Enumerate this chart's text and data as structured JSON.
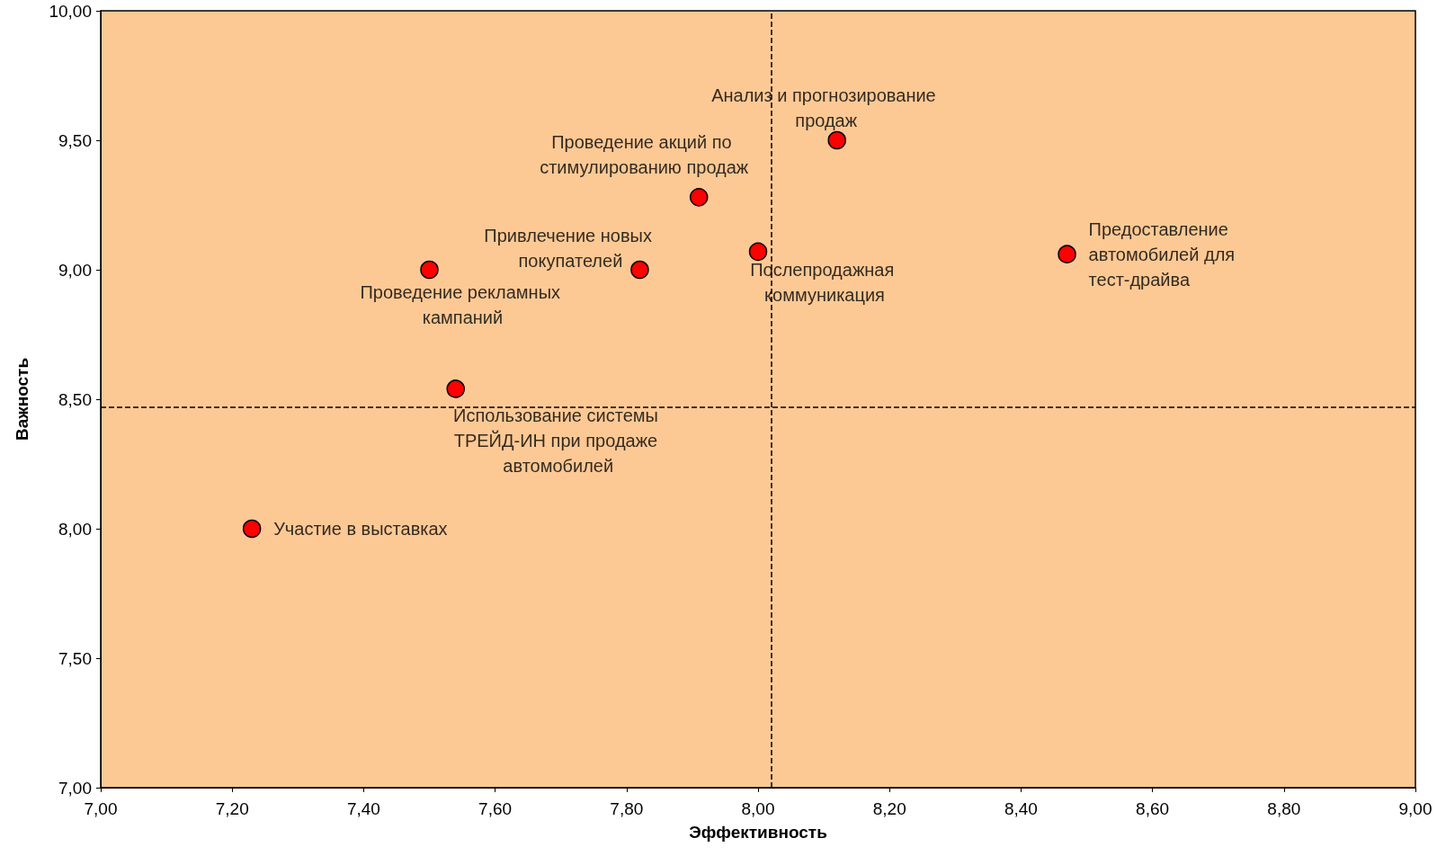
{
  "chart_data": {
    "type": "scatter",
    "xlabel": "Эффективность",
    "ylabel": "Важность",
    "x": [
      7.23,
      7.5,
      7.54,
      7.82,
      7.91,
      8.0,
      8.12,
      8.47
    ],
    "values": [
      8.0,
      9.0,
      8.54,
      9.0,
      9.28,
      9.07,
      9.5,
      9.06
    ],
    "color": "#ff0000",
    "marker": "circle",
    "grid": false,
    "xlim": [
      7.0,
      9.0
    ],
    "xticks": [
      {
        "value": 7.0,
        "label": "7,00"
      },
      {
        "value": 7.2,
        "label": "7,20"
      },
      {
        "value": 7.4,
        "label": "7,40"
      },
      {
        "value": 7.6,
        "label": "7,60"
      },
      {
        "value": 7.8,
        "label": "7,80"
      },
      {
        "value": 8.0,
        "label": "8,00"
      },
      {
        "value": 8.2,
        "label": "8,20"
      },
      {
        "value": 8.4,
        "label": "8,40"
      },
      {
        "value": 8.6,
        "label": "8,60"
      },
      {
        "value": 8.8,
        "label": "8,80"
      },
      {
        "value": 9.0,
        "label": "9,00"
      }
    ],
    "ylim": [
      7.0,
      10.0
    ],
    "yticks": [
      {
        "value": 7.0,
        "label": "7,00"
      },
      {
        "value": 7.5,
        "label": "7,50"
      },
      {
        "value": 8.0,
        "label": "8,00"
      },
      {
        "value": 8.5,
        "label": "8,50"
      },
      {
        "value": 9.0,
        "label": "9,00"
      },
      {
        "value": 9.5,
        "label": "9,50"
      },
      {
        "value": 10.0,
        "label": "10,00"
      }
    ],
    "ref_lines": [
      {
        "axis": "x",
        "value": 8.02,
        "line_style": "dashed",
        "color": "#000000"
      },
      {
        "axis": "y",
        "value": 8.47,
        "line_style": "dashed",
        "color": "#000000"
      }
    ],
    "annotations": [
      {
        "text": "Участие в выставках",
        "x": 7.23,
        "y": 8.0
      },
      {
        "text": "Проведение рекламных кампаний",
        "x": 7.5,
        "y": 9.0
      },
      {
        "text": "Использование системы ТРЕЙД-ИН при продаже автомобилей",
        "x": 7.54,
        "y": 8.54
      },
      {
        "text": "Привлечение новых покупателей",
        "x": 7.82,
        "y": 9.0
      },
      {
        "text": "Проведение акций по стимулированию продаж",
        "x": 7.91,
        "y": 9.28
      },
      {
        "text": "Послепродажная коммуникация",
        "x": 8.0,
        "y": 9.07
      },
      {
        "text": "Анализ и прогнозирование продаж",
        "x": 8.12,
        "y": 9.5
      },
      {
        "text": "Предоставление автомобилей для тест-драйва",
        "x": 8.47,
        "y": 9.06
      }
    ]
  }
}
